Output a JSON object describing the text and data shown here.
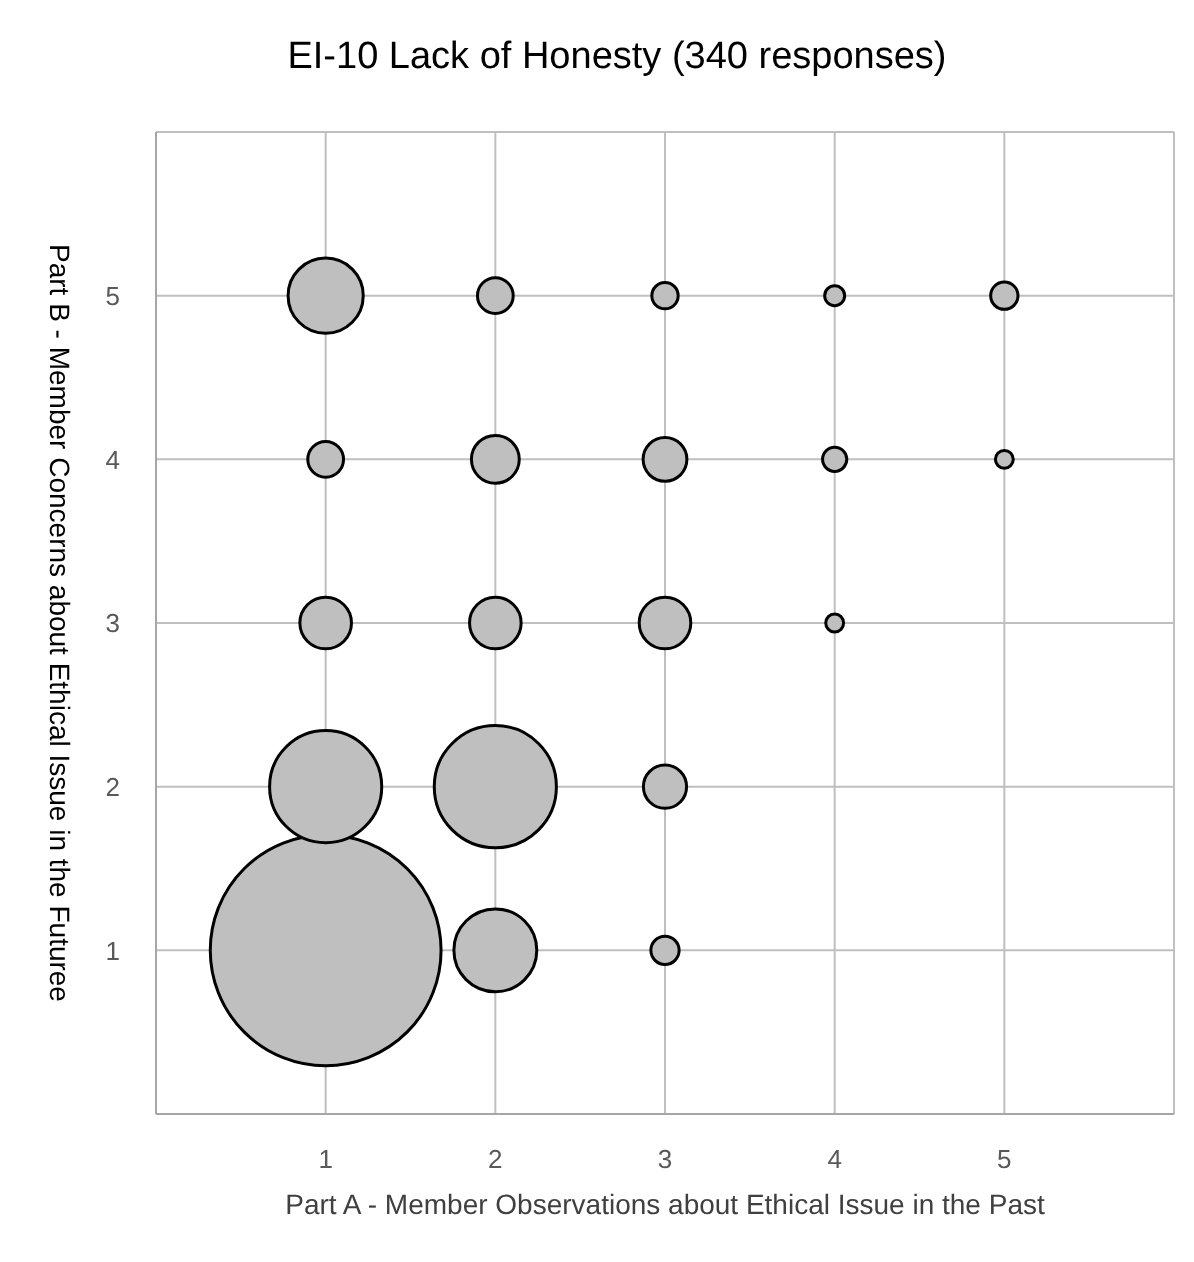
{
  "chart_data": {
    "type": "bubble",
    "title": "EI-10 Lack of Honesty (340 responses)",
    "xlabel": "Part A - Member Observations about Ethical Issue in the Past",
    "ylabel": "Part B - Member Concerns about Ethical Issue in the Futuree",
    "x": [
      1,
      1,
      1,
      1,
      1,
      2,
      2,
      2,
      2,
      2,
      3,
      3,
      3,
      3,
      3,
      4,
      4,
      4,
      5,
      5
    ],
    "series": [
      {
        "color": "#bfbfbf",
        "values": [
          1,
          2,
          3,
          4,
          5,
          1,
          2,
          3,
          4,
          5,
          1,
          2,
          3,
          4,
          5,
          3,
          4,
          5,
          4,
          5
        ],
        "sizes": [
          1,
          0.236,
          0.05,
          0.024,
          0.106,
          0.129,
          0.28,
          0.05,
          0.043,
          0.024,
          0.015,
          0.035,
          0.05,
          0.036,
          0.013,
          0.006,
          0.011,
          0.0075,
          0.006,
          0.014
        ]
      }
    ],
    "xlim": [
      0,
      6
    ],
    "xticks": [
      1,
      2,
      3,
      4,
      5
    ],
    "ylim": [
      0,
      6
    ],
    "yticks": [
      1,
      2,
      3,
      4,
      5
    ],
    "grid": true
  }
}
